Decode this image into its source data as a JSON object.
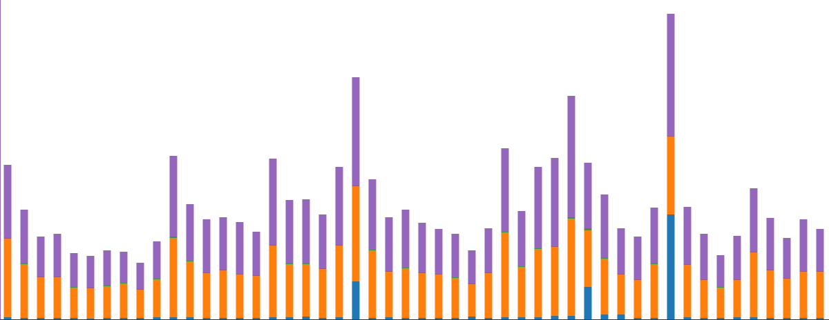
{
  "chart_data": {
    "type": "stacked-bar",
    "categories": [
      null,
      null,
      null,
      null,
      null,
      null,
      null,
      null,
      null,
      null,
      null,
      null,
      null,
      null,
      null,
      null,
      null,
      null,
      null,
      null,
      null,
      null,
      null,
      null,
      null,
      null,
      null,
      null,
      null,
      null,
      null,
      null,
      null,
      null,
      null,
      null,
      null,
      null,
      null,
      null,
      null,
      null,
      null,
      null,
      null,
      null,
      null,
      null,
      null,
      null
    ],
    "ylim": [
      0,
      463
    ],
    "series": [
      {
        "color": "#1f77b4",
        "values": [
          3,
          2,
          2,
          2,
          2,
          1,
          2,
          2,
          2,
          3,
          3,
          3,
          2,
          2,
          2,
          2,
          3,
          3,
          4,
          2,
          3,
          55,
          2,
          3,
          2,
          2,
          2,
          2,
          4,
          2,
          3,
          3,
          3,
          5,
          5,
          47,
          7,
          7,
          2,
          2,
          152,
          3,
          2,
          2,
          3,
          3,
          2,
          2,
          2,
          2
        ]
      },
      {
        "color": "#ff7f0e",
        "values": [
          114,
          78,
          59,
          59,
          44,
          44,
          46,
          50,
          41,
          55,
          115,
          81,
          65,
          69,
          63,
          61,
          104,
          77,
          76,
          71,
          104,
          138,
          98,
          66,
          72,
          65,
          63,
          58,
          47,
          65,
          123,
          73,
          99,
          100,
          141,
          82,
          81,
          58,
          55,
          78,
          113,
          76,
          55,
          44,
          54,
          94,
          69,
          57,
          67,
          67
        ]
      },
      {
        "color": "#2ca02c",
        "values": [
          1,
          1,
          1,
          1,
          1,
          1,
          1,
          1,
          1,
          1,
          2,
          1,
          1,
          1,
          1,
          1,
          1,
          1,
          1,
          1,
          1,
          1,
          1,
          1,
          1,
          1,
          1,
          1,
          1,
          1,
          1,
          1,
          1,
          1,
          2,
          3,
          1,
          1,
          1,
          1,
          1,
          1,
          1,
          1,
          1,
          1,
          1,
          1,
          1,
          1
        ]
      },
      {
        "color": "#9467bd",
        "values": [
          106,
          78,
          58,
          62,
          49,
          46,
          51,
          45,
          38,
          54,
          117,
          82,
          77,
          76,
          75,
          63,
          125,
          92,
          93,
          78,
          113,
          157,
          102,
          78,
          84,
          72,
          65,
          63,
          48,
          64,
          121,
          80,
          118,
          128,
          176,
          95,
          92,
          66,
          62,
          81,
          177,
          83,
          66,
          46,
          63,
          92,
          75,
          58,
          75,
          61
        ]
      }
    ]
  }
}
